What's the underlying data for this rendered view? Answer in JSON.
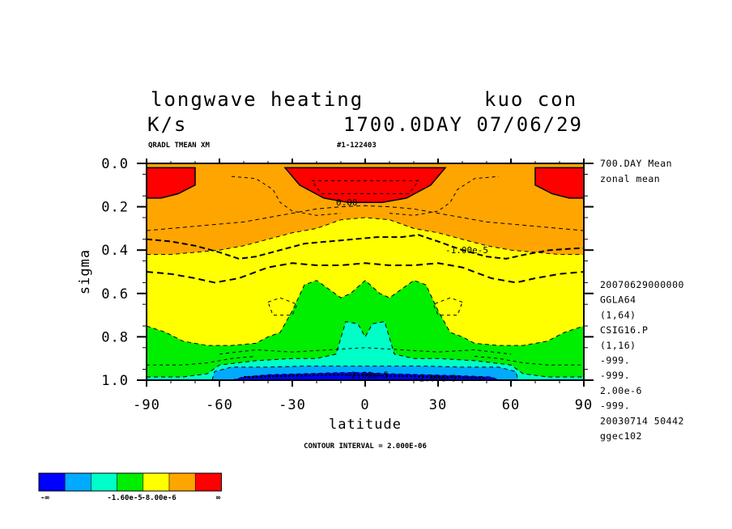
{
  "titles": {
    "line1_left": "longwave heating",
    "line1_right": "kuo con",
    "line2_left": "K/s",
    "line2_right": "1700.0DAY 07/06/29",
    "sub_left": "QRADL TMEAN XM",
    "sub_right": "#1-122403"
  },
  "side_info": {
    "top": [
      "700.DAY Mean",
      "zonal mean"
    ],
    "bottom": [
      "20070629000000",
      "GGLA64",
      "(1,64)",
      "CSIG16.P",
      "(1,16)",
      "-999.",
      "-999.",
      "2.00e-6",
      "-999.",
      "20030714  50442",
      "ggec102"
    ]
  },
  "footer": {
    "contour_interval": "CONTOUR INTERVAL = 2.000E-06"
  },
  "colorbar": {
    "colors": [
      "#0000ff",
      "#00aaff",
      "#00ffc8",
      "#00ee00",
      "#ffff00",
      "#ffa500",
      "#ff0000"
    ],
    "labels": [
      "-∞",
      "-1.60e-5",
      "-8.00e-6",
      "∞"
    ]
  },
  "chart_data": {
    "type": "contour",
    "title": "longwave heating",
    "units": "K/s",
    "xlabel": "latitude",
    "ylabel": "sigma",
    "xlim": [
      -90,
      90
    ],
    "ylim": [
      1.0,
      0.0
    ],
    "xticks": [
      -90,
      -60,
      -30,
      0,
      30,
      60,
      90
    ],
    "xtick_labels": [
      "-90",
      "-60",
      "-30",
      "0",
      "30",
      "60",
      "90"
    ],
    "yticks": [
      0.0,
      0.2,
      0.4,
      0.6,
      0.8,
      1.0
    ],
    "ytick_labels": [
      "0.0",
      "0.2",
      "0.4",
      "0.6",
      "0.8",
      "1.0"
    ],
    "contour_interval": 2e-06,
    "contour_labels": [
      {
        "text": "0.00",
        "lat": -12,
        "sigma": 0.18
      },
      {
        "text": "-1.00e-5",
        "lat": 33,
        "sigma": 0.4
      },
      {
        "text": "-2.00e-5",
        "lat": -8,
        "sigma": 0.975
      },
      {
        "text": "-2.00e-5",
        "lat": 20,
        "sigma": 0.99
      }
    ],
    "bands": [
      {
        "level": "> 0",
        "color": "#ff0000",
        "regions": [
          [
            [
              -90,
              0.02
            ],
            [
              -70,
              0.02
            ],
            [
              -70,
              0.1
            ],
            [
              -77,
              0.14
            ],
            [
              -84,
              0.16
            ],
            [
              -90,
              0.16
            ]
          ],
          [
            [
              -33,
              0.02
            ],
            [
              33,
              0.02
            ],
            [
              27,
              0.1
            ],
            [
              17,
              0.16
            ],
            [
              7,
              0.18
            ],
            [
              -7,
              0.18
            ],
            [
              -17,
              0.16
            ],
            [
              -27,
              0.1
            ]
          ],
          [
            [
              70,
              0.02
            ],
            [
              90,
              0.02
            ],
            [
              90,
              0.16
            ],
            [
              84,
              0.16
            ],
            [
              77,
              0.14
            ],
            [
              70,
              0.1
            ]
          ]
        ]
      },
      {
        "level": "-4e-6 to 0",
        "color": "#ffa500",
        "boundary": [
          [
            -90,
            0.31
          ],
          [
            -80,
            0.3
          ],
          [
            -70,
            0.29
          ],
          [
            -60,
            0.28
          ],
          [
            -50,
            0.27
          ],
          [
            -40,
            0.25
          ],
          [
            -30,
            0.23
          ],
          [
            -20,
            0.21
          ],
          [
            -10,
            0.2
          ],
          [
            0,
            0.195
          ],
          [
            10,
            0.2
          ],
          [
            20,
            0.21
          ],
          [
            30,
            0.23
          ],
          [
            40,
            0.25
          ],
          [
            50,
            0.27
          ],
          [
            60,
            0.28
          ],
          [
            70,
            0.29
          ],
          [
            80,
            0.3
          ],
          [
            90,
            0.31
          ]
        ]
      },
      {
        "level": "-8e-6 to -4e-6",
        "color": "#ffff00",
        "boundary": [
          [
            -90,
            0.42
          ],
          [
            -80,
            0.42
          ],
          [
            -70,
            0.41
          ],
          [
            -60,
            0.4
          ],
          [
            -50,
            0.38
          ],
          [
            -40,
            0.35
          ],
          [
            -30,
            0.32
          ],
          [
            -20,
            0.3
          ],
          [
            -10,
            0.26
          ],
          [
            0,
            0.25
          ],
          [
            10,
            0.26
          ],
          [
            20,
            0.3
          ],
          [
            30,
            0.32
          ],
          [
            40,
            0.35
          ],
          [
            50,
            0.38
          ],
          [
            60,
            0.4
          ],
          [
            70,
            0.41
          ],
          [
            80,
            0.42
          ],
          [
            90,
            0.42
          ]
        ]
      },
      {
        "level": "-1.2e-5 to -8e-6",
        "color": "#00ee00",
        "boundary": [
          [
            -90,
            0.75
          ],
          [
            -82,
            0.78
          ],
          [
            -75,
            0.82
          ],
          [
            -65,
            0.84
          ],
          [
            -55,
            0.84
          ],
          [
            -45,
            0.83
          ],
          [
            -40,
            0.8
          ],
          [
            -35,
            0.78
          ],
          [
            -30,
            0.68
          ],
          [
            -25,
            0.56
          ],
          [
            -20,
            0.54
          ],
          [
            -15,
            0.58
          ],
          [
            -10,
            0.62
          ],
          [
            -6,
            0.6
          ],
          [
            0,
            0.54
          ],
          [
            6,
            0.6
          ],
          [
            10,
            0.62
          ],
          [
            15,
            0.58
          ],
          [
            20,
            0.54
          ],
          [
            25,
            0.56
          ],
          [
            30,
            0.68
          ],
          [
            35,
            0.78
          ],
          [
            40,
            0.8
          ],
          [
            45,
            0.83
          ],
          [
            55,
            0.84
          ],
          [
            65,
            0.84
          ],
          [
            75,
            0.82
          ],
          [
            82,
            0.78
          ],
          [
            90,
            0.75
          ]
        ]
      },
      {
        "level": "-1.6e-5 to -1.2e-5",
        "color": "#00ffc8",
        "boundary": [
          [
            -90,
            0.985
          ],
          [
            -75,
            0.985
          ],
          [
            -65,
            0.97
          ],
          [
            -60,
            0.93
          ],
          [
            -45,
            0.91
          ],
          [
            -30,
            0.9
          ],
          [
            -20,
            0.9
          ],
          [
            -12,
            0.88
          ],
          [
            -8,
            0.73
          ],
          [
            -3,
            0.74
          ],
          [
            0,
            0.8
          ],
          [
            3,
            0.74
          ],
          [
            8,
            0.73
          ],
          [
            12,
            0.88
          ],
          [
            20,
            0.9
          ],
          [
            30,
            0.9
          ],
          [
            45,
            0.91
          ],
          [
            60,
            0.93
          ],
          [
            65,
            0.97
          ],
          [
            75,
            0.985
          ],
          [
            90,
            0.985
          ]
        ]
      },
      {
        "level": "-2e-5 to -1.6e-5",
        "color": "#00aaff",
        "boundary": [
          [
            -63,
            1.0
          ],
          [
            -62,
            0.96
          ],
          [
            -55,
            0.94
          ],
          [
            -40,
            0.94
          ],
          [
            -25,
            0.935
          ],
          [
            -10,
            0.935
          ],
          [
            0,
            0.935
          ],
          [
            10,
            0.935
          ],
          [
            25,
            0.935
          ],
          [
            40,
            0.94
          ],
          [
            55,
            0.94
          ],
          [
            62,
            0.96
          ],
          [
            63,
            1.0
          ]
        ]
      },
      {
        "level": "< -2e-5",
        "color": "#0000ff",
        "boundary": [
          [
            -55,
            1.0
          ],
          [
            -50,
            0.985
          ],
          [
            -40,
            0.975
          ],
          [
            -25,
            0.97
          ],
          [
            -10,
            0.965
          ],
          [
            0,
            0.965
          ],
          [
            10,
            0.97
          ],
          [
            25,
            0.975
          ],
          [
            40,
            0.98
          ],
          [
            52,
            0.985
          ],
          [
            55,
            1.0
          ]
        ]
      }
    ]
  }
}
